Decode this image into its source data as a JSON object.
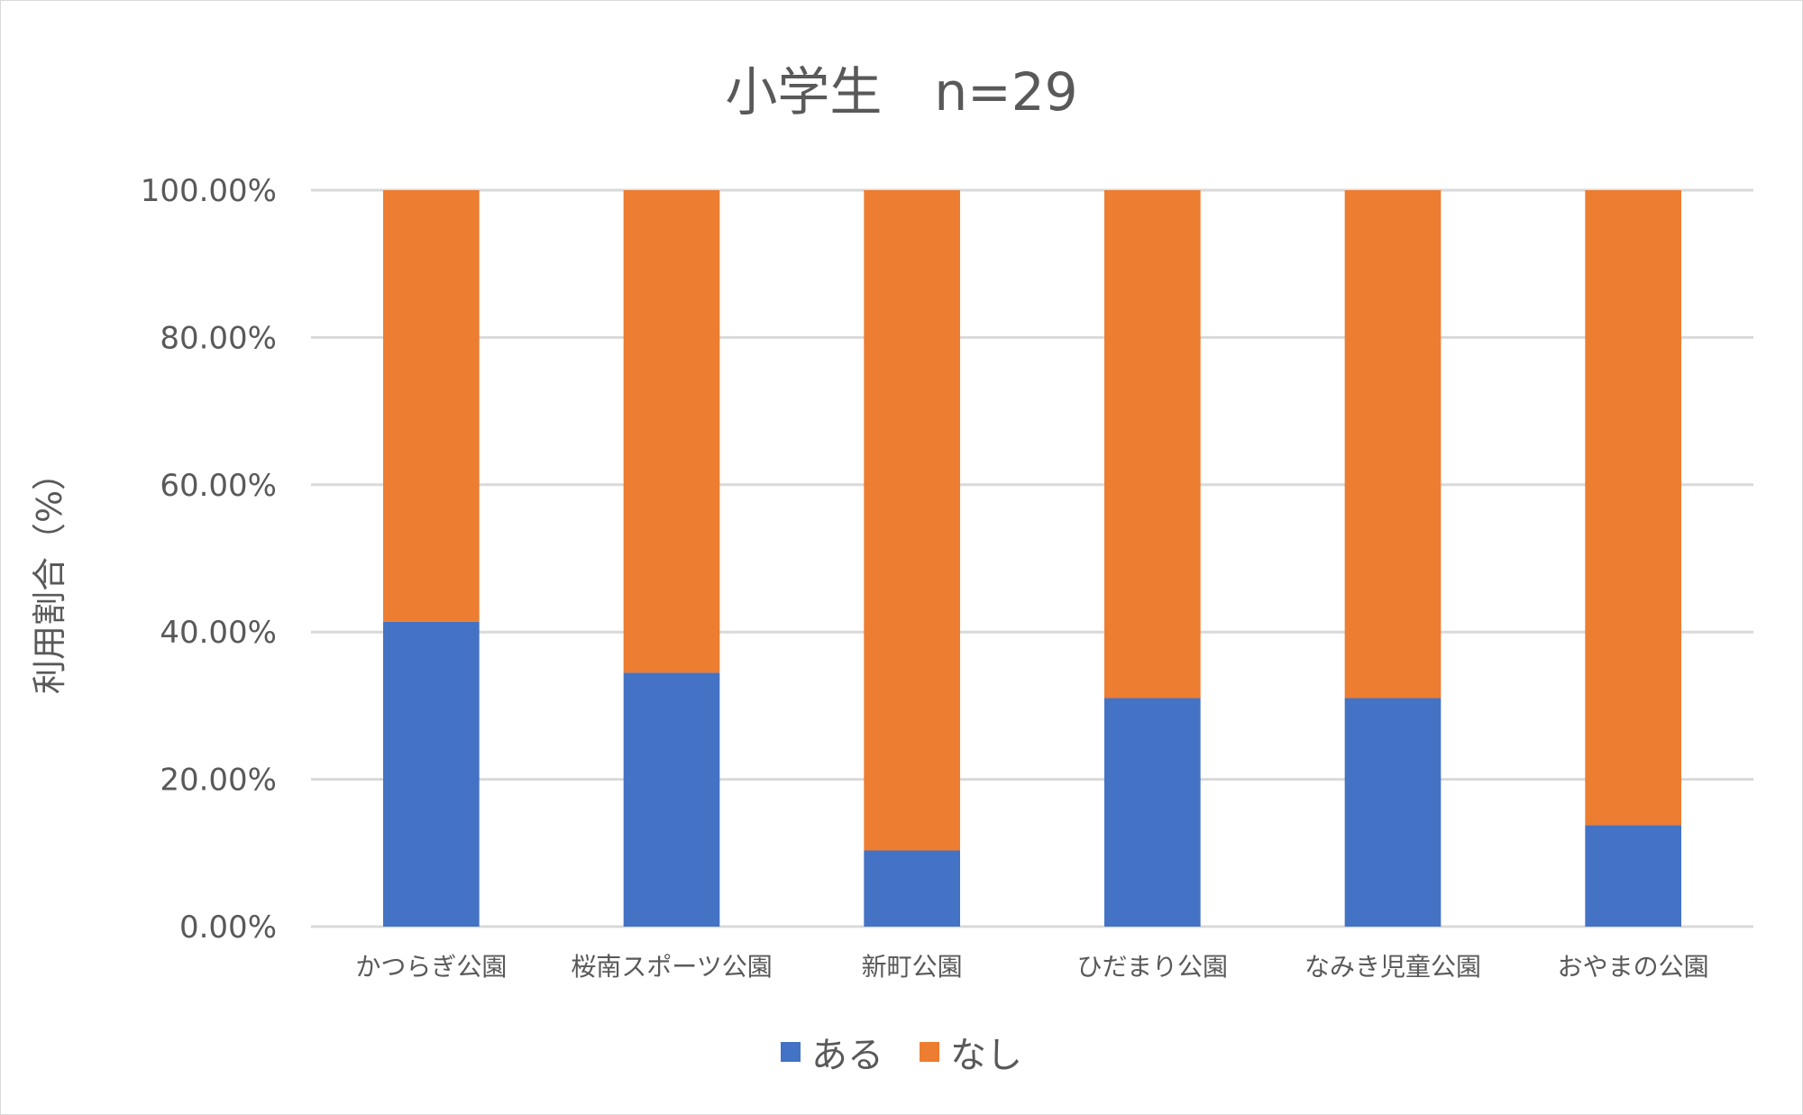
{
  "chart_data": {
    "type": "bar",
    "stacked": true,
    "title": "小学生　n=29",
    "ylabel": "利用割合（%）",
    "xlabel": "",
    "ylim": [
      0,
      100
    ],
    "yticks": [
      "0.00%",
      "20.00%",
      "40.00%",
      "60.00%",
      "80.00%",
      "100.00%"
    ],
    "grid": true,
    "legend_position": "bottom",
    "categories": [
      "かつらぎ公園",
      "桜南スポーツ公園",
      "新町公園",
      "ひだまり公園",
      "なみき児童公園",
      "おやまの公園"
    ],
    "series": [
      {
        "name": "ある",
        "color": "#4472c4",
        "values": [
          41.38,
          34.48,
          10.34,
          31.03,
          31.03,
          13.79
        ]
      },
      {
        "name": "なし",
        "color": "#ed7d31",
        "values": [
          58.62,
          65.52,
          89.66,
          68.97,
          68.97,
          86.21
        ]
      }
    ]
  }
}
